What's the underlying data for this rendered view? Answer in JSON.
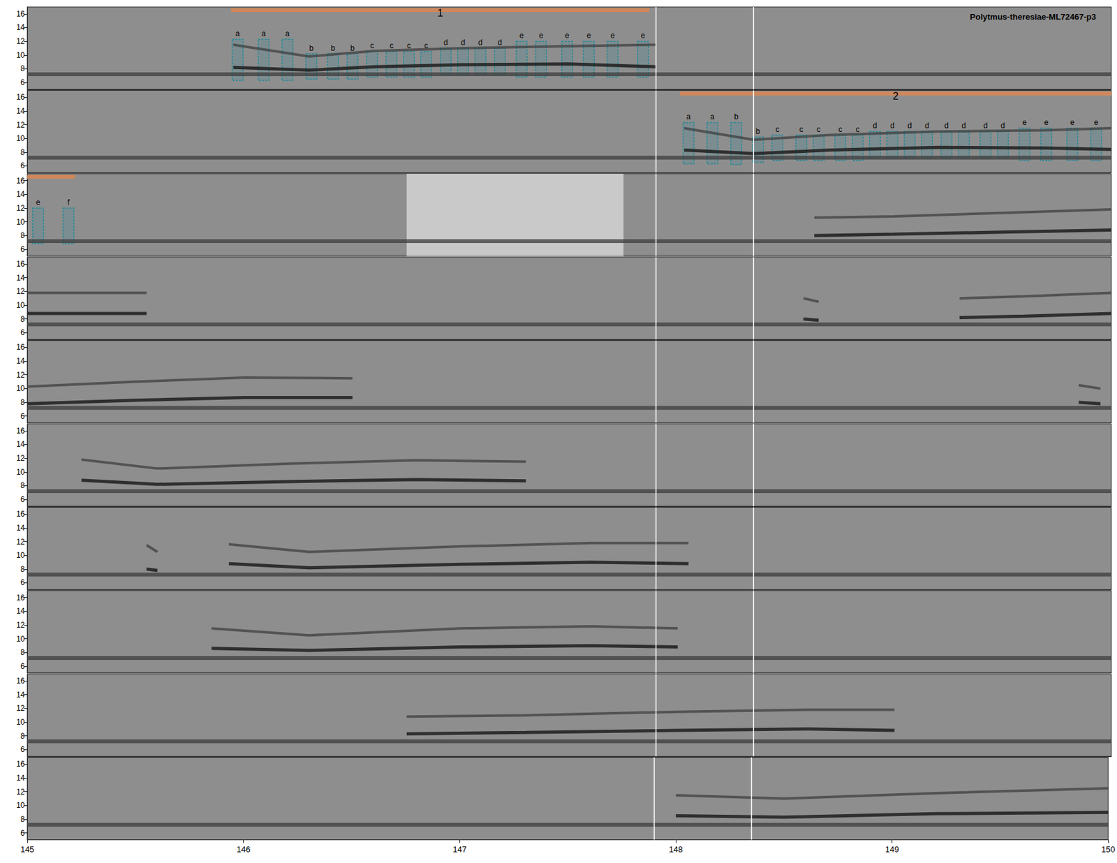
{
  "chart_data": {
    "type": "spectrogram",
    "title": "Polytmus-theresiae-ML72467-p3",
    "xlim": [
      145,
      150
    ],
    "xticks": [
      145,
      146,
      147,
      148,
      149,
      150
    ],
    "ylim": [
      5,
      17
    ],
    "yticks": [
      6,
      8,
      10,
      12,
      14,
      16
    ],
    "noise_band": 7.2,
    "vlines": [
      147.9,
      148.35
    ],
    "panels": [
      {
        "bars": [
          {
            "x0": 145.94,
            "x1": 147.87,
            "label": "1"
          }
        ],
        "boxes": [
          {
            "label": "a",
            "x0": 145.945,
            "x1": 145.995,
            "y0": 6.3,
            "y1": 12.3
          },
          {
            "label": "a",
            "x0": 146.065,
            "x1": 146.115,
            "y0": 6.3,
            "y1": 12.3
          },
          {
            "label": "a",
            "x0": 146.175,
            "x1": 146.225,
            "y0": 6.3,
            "y1": 12.3
          },
          {
            "label": "b",
            "x0": 146.285,
            "x1": 146.335,
            "y0": 6.5,
            "y1": 10.2
          },
          {
            "label": "b",
            "x0": 146.385,
            "x1": 146.435,
            "y0": 6.5,
            "y1": 10.2
          },
          {
            "label": "b",
            "x0": 146.475,
            "x1": 146.525,
            "y0": 6.5,
            "y1": 10.2
          },
          {
            "label": "c",
            "x0": 146.565,
            "x1": 146.615,
            "y0": 6.8,
            "y1": 10.5
          },
          {
            "label": "c",
            "x0": 146.655,
            "x1": 146.705,
            "y0": 6.8,
            "y1": 10.5
          },
          {
            "label": "c",
            "x0": 146.735,
            "x1": 146.785,
            "y0": 6.8,
            "y1": 10.5
          },
          {
            "label": "c",
            "x0": 146.815,
            "x1": 146.865,
            "y0": 6.8,
            "y1": 10.5
          },
          {
            "label": "d",
            "x0": 146.905,
            "x1": 146.955,
            "y0": 7.2,
            "y1": 11
          },
          {
            "label": "d",
            "x0": 146.985,
            "x1": 147.035,
            "y0": 7.2,
            "y1": 11
          },
          {
            "label": "d",
            "x0": 147.065,
            "x1": 147.115,
            "y0": 7.2,
            "y1": 11
          },
          {
            "label": "d",
            "x0": 147.155,
            "x1": 147.205,
            "y0": 7.2,
            "y1": 11
          },
          {
            "label": "e",
            "x0": 147.255,
            "x1": 147.305,
            "y0": 6.8,
            "y1": 12
          },
          {
            "label": "e",
            "x0": 147.345,
            "x1": 147.395,
            "y0": 6.8,
            "y1": 12
          },
          {
            "label": "e",
            "x0": 147.465,
            "x1": 147.515,
            "y0": 6.8,
            "y1": 12
          },
          {
            "label": "e",
            "x0": 147.565,
            "x1": 147.615,
            "y0": 6.8,
            "y1": 12
          },
          {
            "label": "e",
            "x0": 147.675,
            "x1": 147.725,
            "y0": 6.8,
            "y1": 12
          },
          {
            "label": "e",
            "x0": 147.815,
            "x1": 147.865,
            "y0": 6.8,
            "y1": 12
          }
        ],
        "traces": [
          {
            "x": [
              145.95,
              146.3,
              146.6,
              147.0,
              147.5,
              147.9
            ],
            "fundamental": [
              8.2,
              7.8,
              8.3,
              8.6,
              8.7,
              8.3
            ],
            "harmonic": [
              11.5,
              9.8,
              10.6,
              11,
              11.3,
              11.5
            ]
          }
        ]
      },
      {
        "bars": [
          {
            "x0": 148.01,
            "x1": 150,
            "label": "2"
          }
        ],
        "boxes": [
          {
            "label": "a",
            "x0": 148.025,
            "x1": 148.075,
            "y0": 6.3,
            "y1": 12.3
          },
          {
            "label": "a",
            "x0": 148.135,
            "x1": 148.185,
            "y0": 6.3,
            "y1": 12.3
          },
          {
            "label": "b",
            "x0": 148.245,
            "x1": 148.295,
            "y0": 6.2,
            "y1": 12.3
          },
          {
            "label": "b",
            "x0": 148.345,
            "x1": 148.395,
            "y0": 6.5,
            "y1": 10.2
          },
          {
            "label": "c",
            "x0": 148.435,
            "x1": 148.485,
            "y0": 6.8,
            "y1": 10.5
          },
          {
            "label": "c",
            "x0": 148.545,
            "x1": 148.595,
            "y0": 6.8,
            "y1": 10.5
          },
          {
            "label": "c",
            "x0": 148.625,
            "x1": 148.675,
            "y0": 6.8,
            "y1": 10.5
          },
          {
            "label": "c",
            "x0": 148.725,
            "x1": 148.775,
            "y0": 6.8,
            "y1": 10.5
          },
          {
            "label": "c",
            "x0": 148.805,
            "x1": 148.855,
            "y0": 6.8,
            "y1": 10.5
          },
          {
            "label": "d",
            "x0": 148.885,
            "x1": 148.935,
            "y0": 7.2,
            "y1": 11
          },
          {
            "label": "d",
            "x0": 148.965,
            "x1": 149.015,
            "y0": 7.2,
            "y1": 11
          },
          {
            "label": "d",
            "x0": 149.045,
            "x1": 149.095,
            "y0": 7.2,
            "y1": 11
          },
          {
            "label": "d",
            "x0": 149.125,
            "x1": 149.175,
            "y0": 7.2,
            "y1": 11
          },
          {
            "label": "d",
            "x0": 149.215,
            "x1": 149.265,
            "y0": 7.2,
            "y1": 11
          },
          {
            "label": "d",
            "x0": 149.295,
            "x1": 149.345,
            "y0": 7.2,
            "y1": 11
          },
          {
            "label": "d",
            "x0": 149.395,
            "x1": 149.445,
            "y0": 7.2,
            "y1": 11
          },
          {
            "label": "d",
            "x0": 149.475,
            "x1": 149.525,
            "y0": 7.2,
            "y1": 11
          },
          {
            "label": "e",
            "x0": 149.575,
            "x1": 149.625,
            "y0": 6.8,
            "y1": 11.5
          },
          {
            "label": "e",
            "x0": 149.675,
            "x1": 149.725,
            "y0": 6.8,
            "y1": 11.5
          },
          {
            "label": "e",
            "x0": 149.795,
            "x1": 149.845,
            "y0": 6.8,
            "y1": 11.5
          },
          {
            "label": "e",
            "x0": 149.905,
            "x1": 149.955,
            "y0": 6.8,
            "y1": 11.5
          }
        ],
        "traces": [
          {
            "x": [
              148.03,
              148.35,
              148.7,
              149.2,
              149.7,
              150
            ],
            "fundamental": [
              8.3,
              7.8,
              8.3,
              8.7,
              8.6,
              8.4
            ],
            "harmonic": [
              11.5,
              9.8,
              10.5,
              11,
              11.2,
              11.5
            ]
          }
        ]
      },
      {
        "bars": [
          {
            "x0": 145,
            "x1": 145.22
          }
        ],
        "boxes": [
          {
            "label": "e",
            "x0": 145.025,
            "x1": 145.075,
            "y0": 6.8,
            "y1": 12
          },
          {
            "label": "f",
            "x0": 145.165,
            "x1": 145.215,
            "y0": 6.8,
            "y1": 12
          }
        ],
        "blank": [
          146.75,
          147.75
        ],
        "traces": [
          {
            "x": [
              148.63,
              149,
              149.5,
              150
            ],
            "fundamental": [
              8.0,
              8.2,
              8.5,
              8.8
            ],
            "harmonic": [
              10.6,
              10.8,
              11.3,
              11.8
            ]
          }
        ]
      },
      {
        "traces": [
          {
            "x": [
              145,
              145.55
            ],
            "fundamental": [
              8.8,
              8.8
            ],
            "harmonic": [
              11.8,
              11.8
            ]
          },
          {
            "x": [
              148.58,
              148.65
            ],
            "fundamental": [
              8,
              7.8
            ],
            "harmonic": [
              11,
              10.5
            ]
          },
          {
            "x": [
              149.3,
              149.6,
              150
            ],
            "fundamental": [
              8.2,
              8.4,
              8.8
            ],
            "harmonic": [
              11,
              11.3,
              11.8
            ]
          }
        ]
      },
      {
        "traces": [
          {
            "x": [
              145,
              145.5,
              146,
              146.5
            ],
            "fundamental": [
              7.8,
              8.3,
              8.7,
              8.7
            ],
            "harmonic": [
              10.3,
              11,
              11.6,
              11.5
            ]
          },
          {
            "x": [
              149.85,
              149.95
            ],
            "fundamental": [
              8,
              7.8
            ],
            "harmonic": [
              10.5,
              10
            ]
          }
        ]
      },
      {
        "traces": [
          {
            "x": [
              145.25,
              145.6,
              146.2,
              146.8,
              147.3
            ],
            "fundamental": [
              8.8,
              8.2,
              8.6,
              8.9,
              8.7
            ],
            "harmonic": [
              11.8,
              10.5,
              11.2,
              11.7,
              11.5
            ]
          }
        ]
      },
      {
        "traces": [
          {
            "x": [
              145.55,
              145.6
            ],
            "fundamental": [
              8,
              7.8
            ],
            "harmonic": [
              11.5,
              10.5
            ]
          },
          {
            "x": [
              145.93,
              146.3,
              147,
              147.6,
              148.05
            ],
            "fundamental": [
              8.8,
              8.2,
              8.7,
              9,
              8.8
            ],
            "harmonic": [
              11.6,
              10.5,
              11.3,
              11.8,
              11.8
            ]
          }
        ]
      },
      {
        "traces": [
          {
            "x": [
              145.85,
              146.3,
              147,
              147.6,
              148.0
            ],
            "fundamental": [
              8.6,
              8.3,
              8.8,
              9,
              8.8
            ],
            "harmonic": [
              11.5,
              10.5,
              11.5,
              11.8,
              11.5
            ]
          }
        ]
      },
      {
        "traces": [
          {
            "x": [
              146.75,
              147.3,
              148,
              148.6,
              149.0
            ],
            "fundamental": [
              8.3,
              8.5,
              8.8,
              9,
              8.8
            ],
            "harmonic": [
              10.8,
              11,
              11.5,
              11.8,
              11.8
            ]
          }
        ]
      },
      {
        "traces": [
          {
            "x": [
              148.0,
              148.5,
              149.2,
              150
            ],
            "fundamental": [
              8.5,
              8.3,
              8.8,
              9
            ],
            "harmonic": [
              11.5,
              11,
              11.8,
              12.5
            ]
          }
        ]
      }
    ]
  }
}
